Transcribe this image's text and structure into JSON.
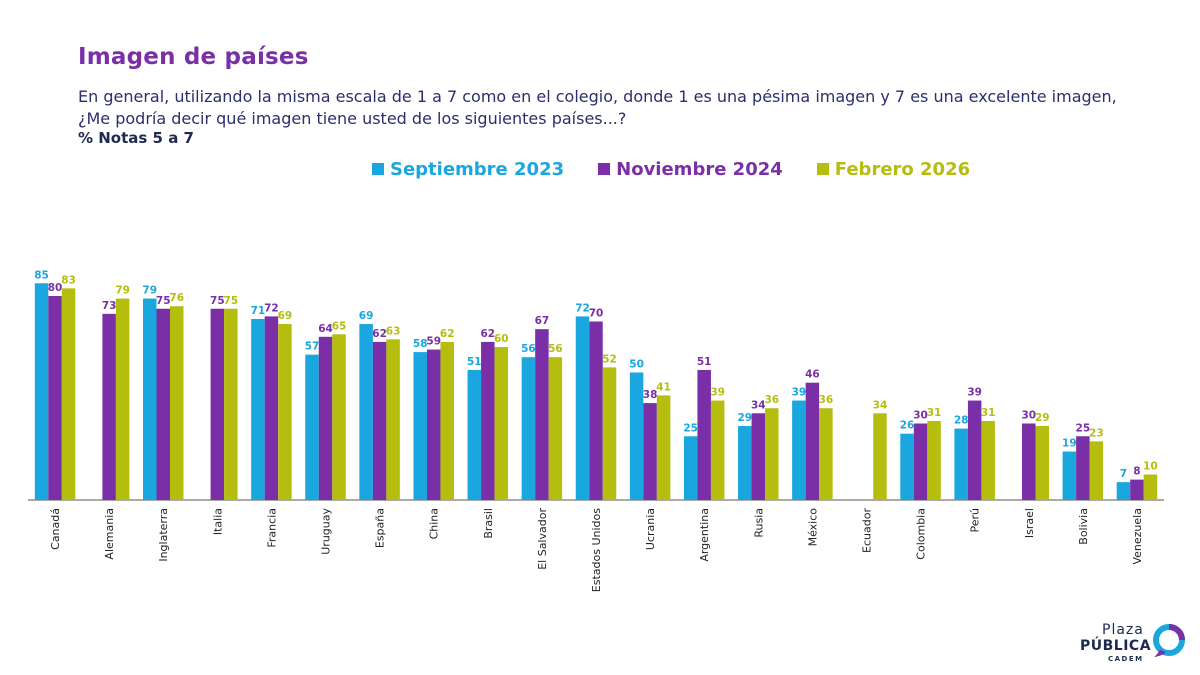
{
  "header": {
    "title": "Imagen de países",
    "subtitle": "En general, utilizando la misma escala de 1 a 7 como en el colegio, donde 1 es una pésima imagen y 7 es una excelente imagen, ¿Me podría decir qué imagen tiene usted de los siguientes países...?",
    "note": "% Notas 5 a 7"
  },
  "colors": {
    "series": [
      "#1aa6df",
      "#7b2fa6",
      "#b5be0f"
    ],
    "title": "#7b2fa6",
    "text": "#2b2f6b",
    "axis": "#555555"
  },
  "chart_data": {
    "type": "bar",
    "title": "Imagen de países",
    "ylim": [
      0,
      100
    ],
    "grid": false,
    "legend_position": "top",
    "categories": [
      "Canadá",
      "Alemania",
      "Inglaterra",
      "Italia",
      "Francia",
      "Uruguay",
      "España",
      "China",
      "Brasil",
      "El Salvador",
      "Estados Unidos",
      "Ucrania",
      "Argentina",
      "Rusia",
      "México",
      "Ecuador",
      "Colombia",
      "Perú",
      "Israel",
      "Bolivia",
      "Venezuela"
    ],
    "series": [
      {
        "name": "Septiembre 2023",
        "values": [
          85,
          null,
          79,
          null,
          71,
          57,
          69,
          58,
          51,
          56,
          72,
          50,
          25,
          29,
          39,
          null,
          26,
          28,
          null,
          19,
          7
        ]
      },
      {
        "name": "Noviembre 2024",
        "values": [
          80,
          73,
          75,
          75,
          72,
          64,
          62,
          59,
          62,
          67,
          70,
          38,
          51,
          34,
          46,
          null,
          30,
          39,
          30,
          25,
          8
        ]
      },
      {
        "name": "Febrero 2026",
        "values": [
          83,
          79,
          76,
          75,
          69,
          65,
          63,
          62,
          60,
          56,
          52,
          41,
          39,
          36,
          36,
          34,
          31,
          31,
          29,
          23,
          10
        ]
      }
    ]
  },
  "logo": {
    "line1": "Plaza",
    "line2": "PÚBLICA",
    "line3": "CADEM"
  }
}
